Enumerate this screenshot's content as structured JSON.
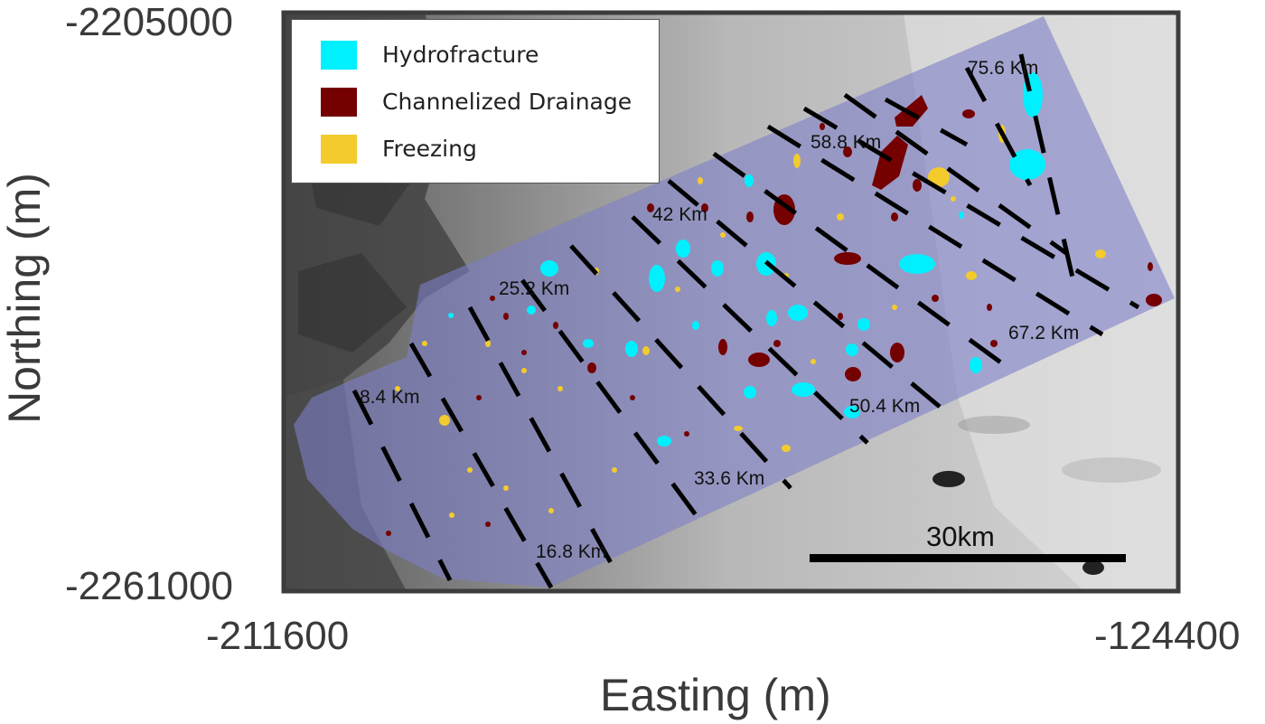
{
  "legend": {
    "items": [
      {
        "label": "Hydrofracture",
        "color": "#00f0ff"
      },
      {
        "label": "Channelized Drainage",
        "color": "#740000"
      },
      {
        "label": "Freezing",
        "color": "#f3cb2c"
      }
    ]
  },
  "axes": {
    "x_label": "Easting (m)",
    "y_label": "Northing (m)",
    "x_ticks": [
      "-211600",
      "-124400"
    ],
    "y_ticks": [
      "-2205000",
      "-2261000"
    ]
  },
  "distance_markers": [
    "8.4 Km",
    "16.8 Km",
    "25.2 Km",
    "33.6 Km",
    "42 Km",
    "50.4 Km",
    "58.8 Km",
    "67.2 Km",
    "75.6 Km"
  ],
  "scale_bar": {
    "label": "30km"
  },
  "colors": {
    "swath_overlay": "#7e7ec8",
    "frame": "#3c3c3c",
    "transect_line": "#000000"
  }
}
